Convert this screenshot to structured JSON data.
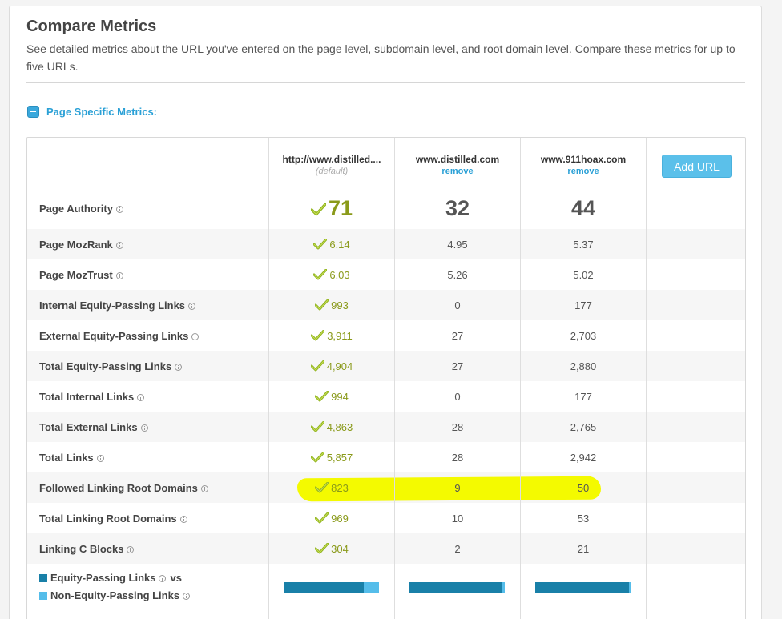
{
  "title": "Compare Metrics",
  "description": "See detailed metrics about the URL you've entered on the page level, subdomain level, and root domain level. Compare these metrics for up to five URLs.",
  "section": {
    "label": "Page Specific Metrics:"
  },
  "columns": [
    {
      "url": "http://www.distilled....",
      "sub": "(default)"
    },
    {
      "url": "www.distilled.com",
      "sub": "remove"
    },
    {
      "url": "www.911hoax.com",
      "sub": "remove"
    }
  ],
  "add_url_label": "Add URL",
  "rows": [
    {
      "label": "Page Authority",
      "values": [
        "71",
        "32",
        "44"
      ]
    },
    {
      "label": "Page MozRank",
      "values": [
        "6.14",
        "4.95",
        "5.37"
      ]
    },
    {
      "label": "Page MozTrust",
      "values": [
        "6.03",
        "5.26",
        "5.02"
      ]
    },
    {
      "label": "Internal Equity-Passing Links",
      "values": [
        "993",
        "0",
        "177"
      ]
    },
    {
      "label": "External Equity-Passing Links",
      "values": [
        "3,911",
        "27",
        "2,703"
      ]
    },
    {
      "label": "Total Equity-Passing Links",
      "values": [
        "4,904",
        "27",
        "2,880"
      ]
    },
    {
      "label": "Total Internal Links",
      "values": [
        "994",
        "0",
        "177"
      ]
    },
    {
      "label": "Total External Links",
      "values": [
        "4,863",
        "28",
        "2,765"
      ]
    },
    {
      "label": "Total Links",
      "values": [
        "5,857",
        "28",
        "2,942"
      ]
    },
    {
      "label": "Followed Linking Root Domains",
      "values": [
        "823",
        "9",
        "50"
      ]
    },
    {
      "label": "Total Linking Root Domains",
      "values": [
        "969",
        "10",
        "53"
      ]
    },
    {
      "label": "Linking C Blocks",
      "values": [
        "304",
        "2",
        "21"
      ]
    }
  ],
  "legend": {
    "equity_label": "Equity-Passing Links",
    "vs": "vs",
    "non_equity_label": "Non-Equity-Passing Links"
  },
  "equity_ratio": [
    0.84,
    0.97,
    0.98
  ],
  "colors": {
    "accent": "#2aa0d6",
    "best_value": "#8a9a1a",
    "equity_bar": "#1980a8",
    "non_equity_bar": "#55bdea",
    "highlight": "#f4fa00"
  }
}
